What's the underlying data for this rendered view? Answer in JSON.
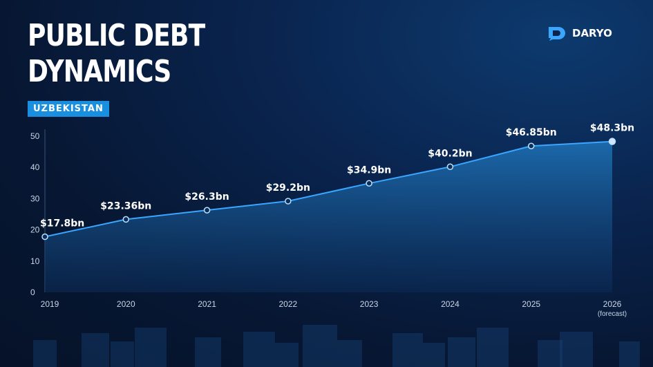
{
  "header": {
    "title_line1": "PUBLIC DEBT",
    "title_line2": "DYNAMICS",
    "badge": "UZBEKISTAN",
    "logo_text": "DARYO",
    "logo_icon": "daryo-logo-icon"
  },
  "colors": {
    "line": "#3aa6ff",
    "badge": "#1a8fe0",
    "background": "#071733"
  },
  "chart_data": {
    "type": "area",
    "categories": [
      "2019",
      "2020",
      "2021",
      "2022",
      "2023",
      "2024",
      "2025",
      "2026"
    ],
    "category_notes": [
      "",
      "",
      "",
      "",
      "",
      "",
      "",
      "(forecast)"
    ],
    "values": [
      17.8,
      23.36,
      26.3,
      29.2,
      34.9,
      40.2,
      46.85,
      48.3
    ],
    "data_labels": [
      "$17.8bn",
      "$23.36bn",
      "$26.3bn",
      "$29.2bn",
      "$34.9bn",
      "$40.2bn",
      "$46.85bn",
      "$48.3bn"
    ],
    "yticks": [
      0,
      10,
      20,
      30,
      40,
      50
    ],
    "ylim": [
      0,
      50
    ],
    "title": "PUBLIC DEBT DYNAMICS",
    "subtitle": "UZBEKISTAN",
    "xlabel": "",
    "ylabel": "",
    "grid": false,
    "legend": "none"
  }
}
